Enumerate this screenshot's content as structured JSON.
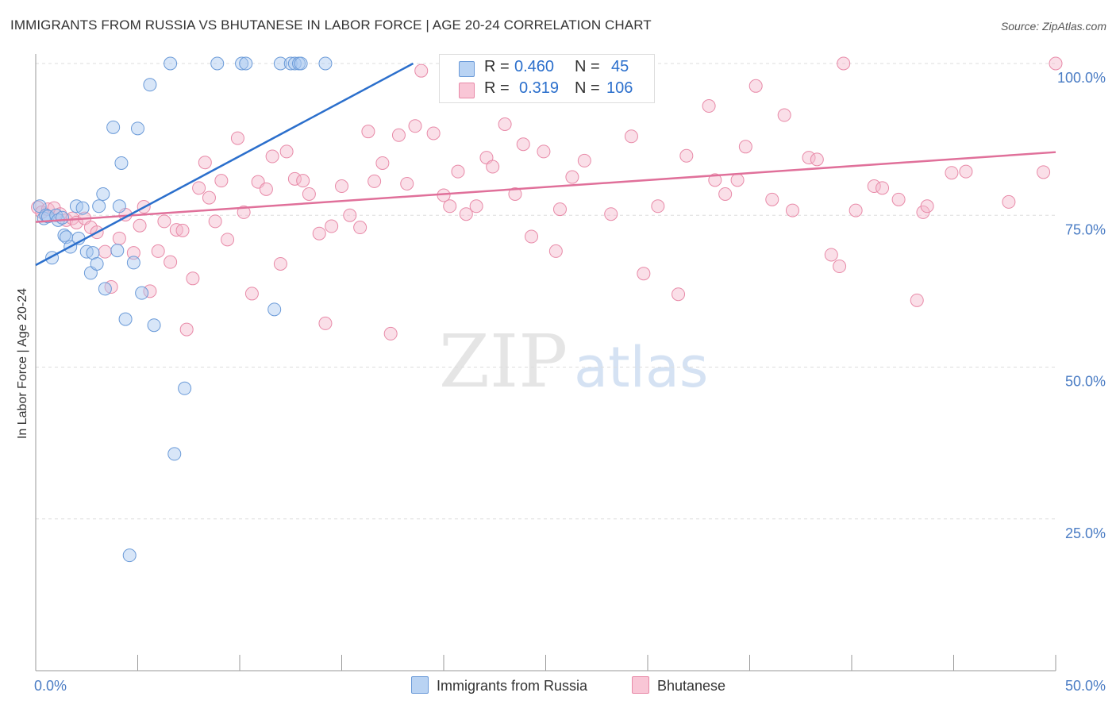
{
  "title": "IMMIGRANTS FROM RUSSIA VS BHUTANESE IN LABOR FORCE | AGE 20-24 CORRELATION CHART",
  "source": "Source: ZipAtlas.com",
  "watermark": {
    "zip": "ZIP",
    "atlas": "atlas"
  },
  "legend": {
    "rows": [
      {
        "r_label": "R =",
        "r_value": "0.460",
        "n_label": "N =",
        "n_value": "45"
      },
      {
        "r_label": "R =",
        "r_value": "0.319",
        "n_label": "N =",
        "n_value": "106"
      }
    ]
  },
  "colors": {
    "blue_fill": "#a8c8f0",
    "blue_stroke": "#6a9ad8",
    "blue_line": "#2b6fcc",
    "pink_fill": "#f5b8cc",
    "pink_stroke": "#e88aa8",
    "pink_line": "#e0709a",
    "axis_text": "#4a7cc4",
    "grid": "#dddddd"
  },
  "chart_data": {
    "type": "scatter",
    "title": "IMMIGRANTS FROM RUSSIA VS BHUTANESE IN LABOR FORCE | AGE 20-24 CORRELATION CHART",
    "xlabel": "",
    "ylabel": "In Labor Force | Age 20-24",
    "xlim": [
      0,
      50
    ],
    "ylim": [
      0,
      100
    ],
    "x_tick_labels": [
      "0.0%",
      "50.0%"
    ],
    "y_ticks": [
      25,
      50,
      75,
      100
    ],
    "y_tick_labels": [
      "25.0%",
      "50.0%",
      "75.0%",
      "100.0%"
    ],
    "series": [
      {
        "name": "Immigrants from Russia",
        "R": 0.46,
        "N": 45,
        "trend": {
          "x": [
            0,
            18.5
          ],
          "y": [
            66.8,
            100
          ]
        },
        "points": [
          [
            0.2,
            76.5
          ],
          [
            0.4,
            74.5
          ],
          [
            0.5,
            75.0
          ],
          [
            0.6,
            74.8
          ],
          [
            0.8,
            68.0
          ],
          [
            1.0,
            75.0
          ],
          [
            1.1,
            74.2
          ],
          [
            1.3,
            74.6
          ],
          [
            1.4,
            71.7
          ],
          [
            1.5,
            71.4
          ],
          [
            1.7,
            69.8
          ],
          [
            2.0,
            76.5
          ],
          [
            2.1,
            71.2
          ],
          [
            2.3,
            76.2
          ],
          [
            2.5,
            69.0
          ],
          [
            2.7,
            65.5
          ],
          [
            2.8,
            68.8
          ],
          [
            3.0,
            67.0
          ],
          [
            3.1,
            76.5
          ],
          [
            3.3,
            78.5
          ],
          [
            3.4,
            62.9
          ],
          [
            3.8,
            89.5
          ],
          [
            4.0,
            69.2
          ],
          [
            4.1,
            76.5
          ],
          [
            4.2,
            83.6
          ],
          [
            4.4,
            57.9
          ],
          [
            4.8,
            67.2
          ],
          [
            5.0,
            89.3
          ],
          [
            5.2,
            62.2
          ],
          [
            5.6,
            96.5
          ],
          [
            5.8,
            56.9
          ],
          [
            6.6,
            100.0
          ],
          [
            6.8,
            35.7
          ],
          [
            7.3,
            46.5
          ],
          [
            4.6,
            19.0
          ],
          [
            8.9,
            100.0
          ],
          [
            10.1,
            100.0
          ],
          [
            10.3,
            100.0
          ],
          [
            11.7,
            59.5
          ],
          [
            12.0,
            100.0
          ],
          [
            12.5,
            100.0
          ],
          [
            12.7,
            100.0
          ],
          [
            12.9,
            100.0
          ],
          [
            14.2,
            100.0
          ],
          [
            13.0,
            100.0
          ]
        ]
      },
      {
        "name": "Bhutanese",
        "R": 0.319,
        "N": 106,
        "trend": {
          "x": [
            0,
            50
          ],
          "y": [
            73.9,
            85.4
          ]
        },
        "points": [
          [
            0.1,
            76.3
          ],
          [
            0.3,
            75.5
          ],
          [
            0.6,
            76.0
          ],
          [
            0.9,
            76.2
          ],
          [
            1.2,
            75.2
          ],
          [
            1.5,
            74.2
          ],
          [
            1.8,
            74.5
          ],
          [
            2.0,
            73.8
          ],
          [
            2.4,
            74.5
          ],
          [
            2.7,
            73.0
          ],
          [
            3.0,
            72.2
          ],
          [
            3.4,
            69.0
          ],
          [
            3.7,
            63.2
          ],
          [
            4.1,
            71.2
          ],
          [
            4.4,
            75.1
          ],
          [
            4.8,
            68.8
          ],
          [
            5.1,
            73.3
          ],
          [
            5.3,
            76.4
          ],
          [
            5.6,
            62.5
          ],
          [
            6.0,
            69.1
          ],
          [
            6.3,
            74.0
          ],
          [
            6.6,
            67.3
          ],
          [
            6.9,
            72.6
          ],
          [
            7.2,
            72.5
          ],
          [
            7.4,
            56.2
          ],
          [
            7.7,
            64.6
          ],
          [
            8.0,
            79.5
          ],
          [
            8.3,
            83.7
          ],
          [
            8.5,
            77.9
          ],
          [
            8.8,
            74.0
          ],
          [
            9.1,
            80.7
          ],
          [
            9.4,
            71.0
          ],
          [
            9.9,
            87.7
          ],
          [
            10.2,
            75.5
          ],
          [
            10.6,
            62.1
          ],
          [
            10.9,
            80.5
          ],
          [
            11.3,
            79.3
          ],
          [
            11.6,
            84.7
          ],
          [
            12.0,
            67.0
          ],
          [
            12.3,
            85.5
          ],
          [
            12.7,
            81.0
          ],
          [
            13.1,
            80.7
          ],
          [
            13.4,
            78.5
          ],
          [
            13.9,
            72.0
          ],
          [
            14.2,
            57.2
          ],
          [
            14.5,
            73.2
          ],
          [
            15.0,
            79.8
          ],
          [
            15.4,
            75.0
          ],
          [
            15.9,
            73.0
          ],
          [
            16.3,
            88.8
          ],
          [
            16.6,
            80.6
          ],
          [
            17.0,
            83.6
          ],
          [
            17.4,
            55.5
          ],
          [
            17.8,
            88.2
          ],
          [
            18.2,
            80.2
          ],
          [
            18.6,
            89.7
          ],
          [
            18.9,
            98.8
          ],
          [
            19.5,
            88.5
          ],
          [
            20.0,
            78.3
          ],
          [
            20.3,
            76.5
          ],
          [
            20.7,
            82.2
          ],
          [
            21.1,
            75.2
          ],
          [
            21.6,
            76.5
          ],
          [
            22.1,
            84.5
          ],
          [
            22.4,
            83.0
          ],
          [
            23.0,
            90.0
          ],
          [
            23.5,
            78.5
          ],
          [
            23.9,
            86.7
          ],
          [
            24.3,
            71.5
          ],
          [
            24.9,
            85.5
          ],
          [
            25.5,
            69.1
          ],
          [
            25.7,
            76.0
          ],
          [
            26.3,
            81.3
          ],
          [
            26.9,
            84.0
          ],
          [
            28.1,
            100.0
          ],
          [
            28.2,
            75.2
          ],
          [
            29.2,
            88.0
          ],
          [
            29.8,
            65.4
          ],
          [
            30.5,
            76.5
          ],
          [
            31.5,
            62.0
          ],
          [
            31.9,
            84.8
          ],
          [
            33.0,
            93.0
          ],
          [
            33.3,
            80.8
          ],
          [
            33.8,
            78.5
          ],
          [
            34.4,
            80.8
          ],
          [
            34.8,
            86.3
          ],
          [
            35.3,
            96.3
          ],
          [
            36.1,
            77.6
          ],
          [
            36.7,
            91.5
          ],
          [
            37.1,
            75.8
          ],
          [
            37.9,
            84.5
          ],
          [
            38.3,
            84.2
          ],
          [
            39.0,
            68.5
          ],
          [
            39.4,
            66.6
          ],
          [
            40.2,
            75.8
          ],
          [
            41.1,
            79.8
          ],
          [
            41.5,
            79.5
          ],
          [
            42.3,
            77.6
          ],
          [
            43.2,
            61.0
          ],
          [
            43.5,
            75.5
          ],
          [
            43.7,
            76.5
          ],
          [
            44.9,
            82.0
          ],
          [
            45.6,
            82.2
          ],
          [
            47.7,
            77.2
          ],
          [
            50.0,
            100.0
          ],
          [
            49.4,
            82.1
          ],
          [
            39.6,
            100.0
          ]
        ]
      }
    ]
  },
  "bottom_legend": {
    "items": [
      {
        "label": "Immigrants from Russia"
      },
      {
        "label": "Bhutanese"
      }
    ]
  }
}
